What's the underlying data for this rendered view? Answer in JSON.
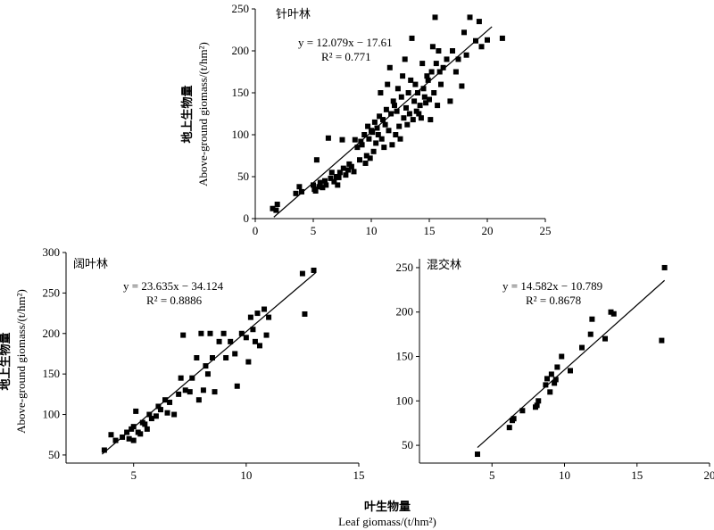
{
  "figure": {
    "ylabel_zh": "地上生物量",
    "ylabel_en": "Above-ground giomass/(t/hm²)",
    "xlabel_zh": "叶生物量",
    "xlabel_en": "Leaf giomass/(t/hm²)"
  },
  "chart_data": [
    {
      "type": "scatter",
      "title": "针叶林",
      "xlim": [
        0,
        25
      ],
      "ylim": [
        0,
        250
      ],
      "xticks": [
        0,
        5,
        10,
        15,
        20,
        25
      ],
      "yticks": [
        0,
        50,
        100,
        150,
        200,
        250
      ],
      "equation": "y = 12.079x − 17.61",
      "r2_text": "R² = 0.771",
      "fit": {
        "slope": 12.079,
        "intercept": -17.61,
        "x_range": [
          1.6,
          20.4
        ]
      },
      "points": [
        [
          1.5,
          12
        ],
        [
          1.8,
          10
        ],
        [
          1.9,
          17
        ],
        [
          3.5,
          30
        ],
        [
          3.8,
          38
        ],
        [
          4.0,
          32
        ],
        [
          5.0,
          40
        ],
        [
          5.1,
          35
        ],
        [
          5.2,
          33
        ],
        [
          5.3,
          70
        ],
        [
          5.5,
          38
        ],
        [
          5.6,
          43
        ],
        [
          5.8,
          37
        ],
        [
          6.0,
          45
        ],
        [
          6.1,
          40
        ],
        [
          6.3,
          96
        ],
        [
          6.5,
          48
        ],
        [
          6.6,
          55
        ],
        [
          6.8,
          44
        ],
        [
          7.0,
          50
        ],
        [
          7.1,
          40
        ],
        [
          7.2,
          49
        ],
        [
          7.3,
          55
        ],
        [
          7.5,
          94
        ],
        [
          7.6,
          60
        ],
        [
          7.8,
          52
        ],
        [
          8.0,
          58
        ],
        [
          8.1,
          65
        ],
        [
          8.3,
          62
        ],
        [
          8.5,
          56
        ],
        [
          8.6,
          94
        ],
        [
          8.8,
          85
        ],
        [
          9.0,
          70
        ],
        [
          9.1,
          92
        ],
        [
          9.2,
          88
        ],
        [
          9.4,
          100
        ],
        [
          9.5,
          66
        ],
        [
          9.6,
          75
        ],
        [
          9.7,
          110
        ],
        [
          9.8,
          95
        ],
        [
          9.9,
          72
        ],
        [
          10.0,
          105
        ],
        [
          10.1,
          103
        ],
        [
          10.2,
          80
        ],
        [
          10.3,
          115
        ],
        [
          10.4,
          90
        ],
        [
          10.5,
          108
        ],
        [
          10.6,
          100
        ],
        [
          10.7,
          122
        ],
        [
          10.8,
          150
        ],
        [
          10.9,
          95
        ],
        [
          11.0,
          118
        ],
        [
          11.1,
          85
        ],
        [
          11.2,
          112
        ],
        [
          11.3,
          130
        ],
        [
          11.4,
          160
        ],
        [
          11.5,
          105
        ],
        [
          11.6,
          180
        ],
        [
          11.7,
          125
        ],
        [
          11.8,
          88
        ],
        [
          11.9,
          140
        ],
        [
          12.0,
          135
        ],
        [
          12.1,
          100
        ],
        [
          12.2,
          128
        ],
        [
          12.3,
          155
        ],
        [
          12.4,
          110
        ],
        [
          12.5,
          95
        ],
        [
          12.6,
          145
        ],
        [
          12.7,
          170
        ],
        [
          12.8,
          120
        ],
        [
          12.9,
          190
        ],
        [
          13.0,
          132
        ],
        [
          13.1,
          112
        ],
        [
          13.2,
          150
        ],
        [
          13.3,
          125
        ],
        [
          13.4,
          165
        ],
        [
          13.5,
          215
        ],
        [
          13.6,
          118
        ],
        [
          13.7,
          140
        ],
        [
          13.8,
          160
        ],
        [
          13.9,
          128
        ],
        [
          14.0,
          150
        ],
        [
          14.1,
          125
        ],
        [
          14.2,
          135
        ],
        [
          14.3,
          120
        ],
        [
          14.4,
          185
        ],
        [
          14.5,
          155
        ],
        [
          14.6,
          145
        ],
        [
          14.7,
          138
        ],
        [
          14.8,
          170
        ],
        [
          14.9,
          165
        ],
        [
          15.0,
          142
        ],
        [
          15.1,
          118
        ],
        [
          15.2,
          175
        ],
        [
          15.3,
          205
        ],
        [
          15.4,
          150
        ],
        [
          15.5,
          240
        ],
        [
          15.6,
          185
        ],
        [
          15.7,
          135
        ],
        [
          15.8,
          200
        ],
        [
          15.9,
          175
        ],
        [
          16.0,
          160
        ],
        [
          16.2,
          180
        ],
        [
          16.5,
          190
        ],
        [
          16.8,
          140
        ],
        [
          17.0,
          200
        ],
        [
          17.3,
          175
        ],
        [
          17.5,
          190
        ],
        [
          17.8,
          158
        ],
        [
          18.0,
          222
        ],
        [
          18.2,
          195
        ],
        [
          18.5,
          240
        ],
        [
          19.0,
          212
        ],
        [
          19.3,
          235
        ],
        [
          19.5,
          205
        ],
        [
          20.0,
          213
        ],
        [
          21.3,
          215
        ]
      ]
    },
    {
      "type": "scatter",
      "title": "阔叶林",
      "xlim": [
        2,
        15
      ],
      "ylim": [
        40,
        300
      ],
      "xticks": [
        5,
        10,
        15
      ],
      "yticks": [
        50,
        100,
        150,
        200,
        250,
        300
      ],
      "equation": "y = 23.635x − 34.124",
      "r2_text": "R² = 0.8886",
      "fit": {
        "slope": 23.635,
        "intercept": -34.124,
        "x_range": [
          3.6,
          13.1
        ]
      },
      "points": [
        [
          3.7,
          56
        ],
        [
          4.0,
          75
        ],
        [
          4.2,
          68
        ],
        [
          4.5,
          72
        ],
        [
          4.7,
          78
        ],
        [
          4.8,
          70
        ],
        [
          4.9,
          82
        ],
        [
          5.0,
          68
        ],
        [
          5.0,
          85
        ],
        [
          5.1,
          104
        ],
        [
          5.2,
          78
        ],
        [
          5.3,
          76
        ],
        [
          5.4,
          90
        ],
        [
          5.5,
          88
        ],
        [
          5.6,
          82
        ],
        [
          5.7,
          100
        ],
        [
          5.8,
          95
        ],
        [
          6.0,
          98
        ],
        [
          6.1,
          110
        ],
        [
          6.2,
          106
        ],
        [
          6.4,
          118
        ],
        [
          6.5,
          102
        ],
        [
          6.6,
          115
        ],
        [
          6.8,
          100
        ],
        [
          7.0,
          125
        ],
        [
          7.1,
          145
        ],
        [
          7.2,
          198
        ],
        [
          7.3,
          130
        ],
        [
          7.5,
          128
        ],
        [
          7.6,
          145
        ],
        [
          7.8,
          170
        ],
        [
          7.9,
          118
        ],
        [
          8.0,
          200
        ],
        [
          8.1,
          130
        ],
        [
          8.2,
          160
        ],
        [
          8.3,
          150
        ],
        [
          8.4,
          200
        ],
        [
          8.5,
          170
        ],
        [
          8.6,
          128
        ],
        [
          8.8,
          190
        ],
        [
          9.0,
          200
        ],
        [
          9.1,
          170
        ],
        [
          9.3,
          190
        ],
        [
          9.5,
          175
        ],
        [
          9.6,
          135
        ],
        [
          9.8,
          200
        ],
        [
          10.0,
          195
        ],
        [
          10.1,
          165
        ],
        [
          10.2,
          220
        ],
        [
          10.3,
          205
        ],
        [
          10.4,
          190
        ],
        [
          10.5,
          225
        ],
        [
          10.6,
          185
        ],
        [
          10.8,
          230
        ],
        [
          10.9,
          198
        ],
        [
          11.0,
          220
        ],
        [
          12.5,
          274
        ],
        [
          12.6,
          224
        ],
        [
          13.0,
          278
        ]
      ]
    },
    {
      "type": "scatter",
      "title": "混交林",
      "xlim": [
        0,
        20
      ],
      "ylim": [
        30,
        260
      ],
      "xticks": [
        5,
        10,
        15,
        20
      ],
      "yticks": [
        50,
        100,
        150,
        200,
        250
      ],
      "equation": "y = 14.582x − 10.789",
      "r2_text": "R² = 0.8678",
      "fit": {
        "slope": 14.582,
        "intercept": -10.789,
        "x_range": [
          4.0,
          16.9
        ]
      },
      "points": [
        [
          4.0,
          40
        ],
        [
          6.2,
          70
        ],
        [
          6.4,
          78
        ],
        [
          6.5,
          80
        ],
        [
          7.1,
          89
        ],
        [
          8.0,
          93
        ],
        [
          8.1,
          95
        ],
        [
          8.2,
          100
        ],
        [
          8.7,
          118
        ],
        [
          8.8,
          125
        ],
        [
          9.0,
          110
        ],
        [
          9.1,
          130
        ],
        [
          9.3,
          120
        ],
        [
          9.4,
          124
        ],
        [
          9.5,
          138
        ],
        [
          9.8,
          150
        ],
        [
          10.4,
          134
        ],
        [
          11.2,
          160
        ],
        [
          11.8,
          175
        ],
        [
          11.9,
          192
        ],
        [
          12.8,
          170
        ],
        [
          13.2,
          200
        ],
        [
          13.4,
          198
        ],
        [
          16.7,
          168
        ],
        [
          16.9,
          250
        ]
      ]
    }
  ]
}
